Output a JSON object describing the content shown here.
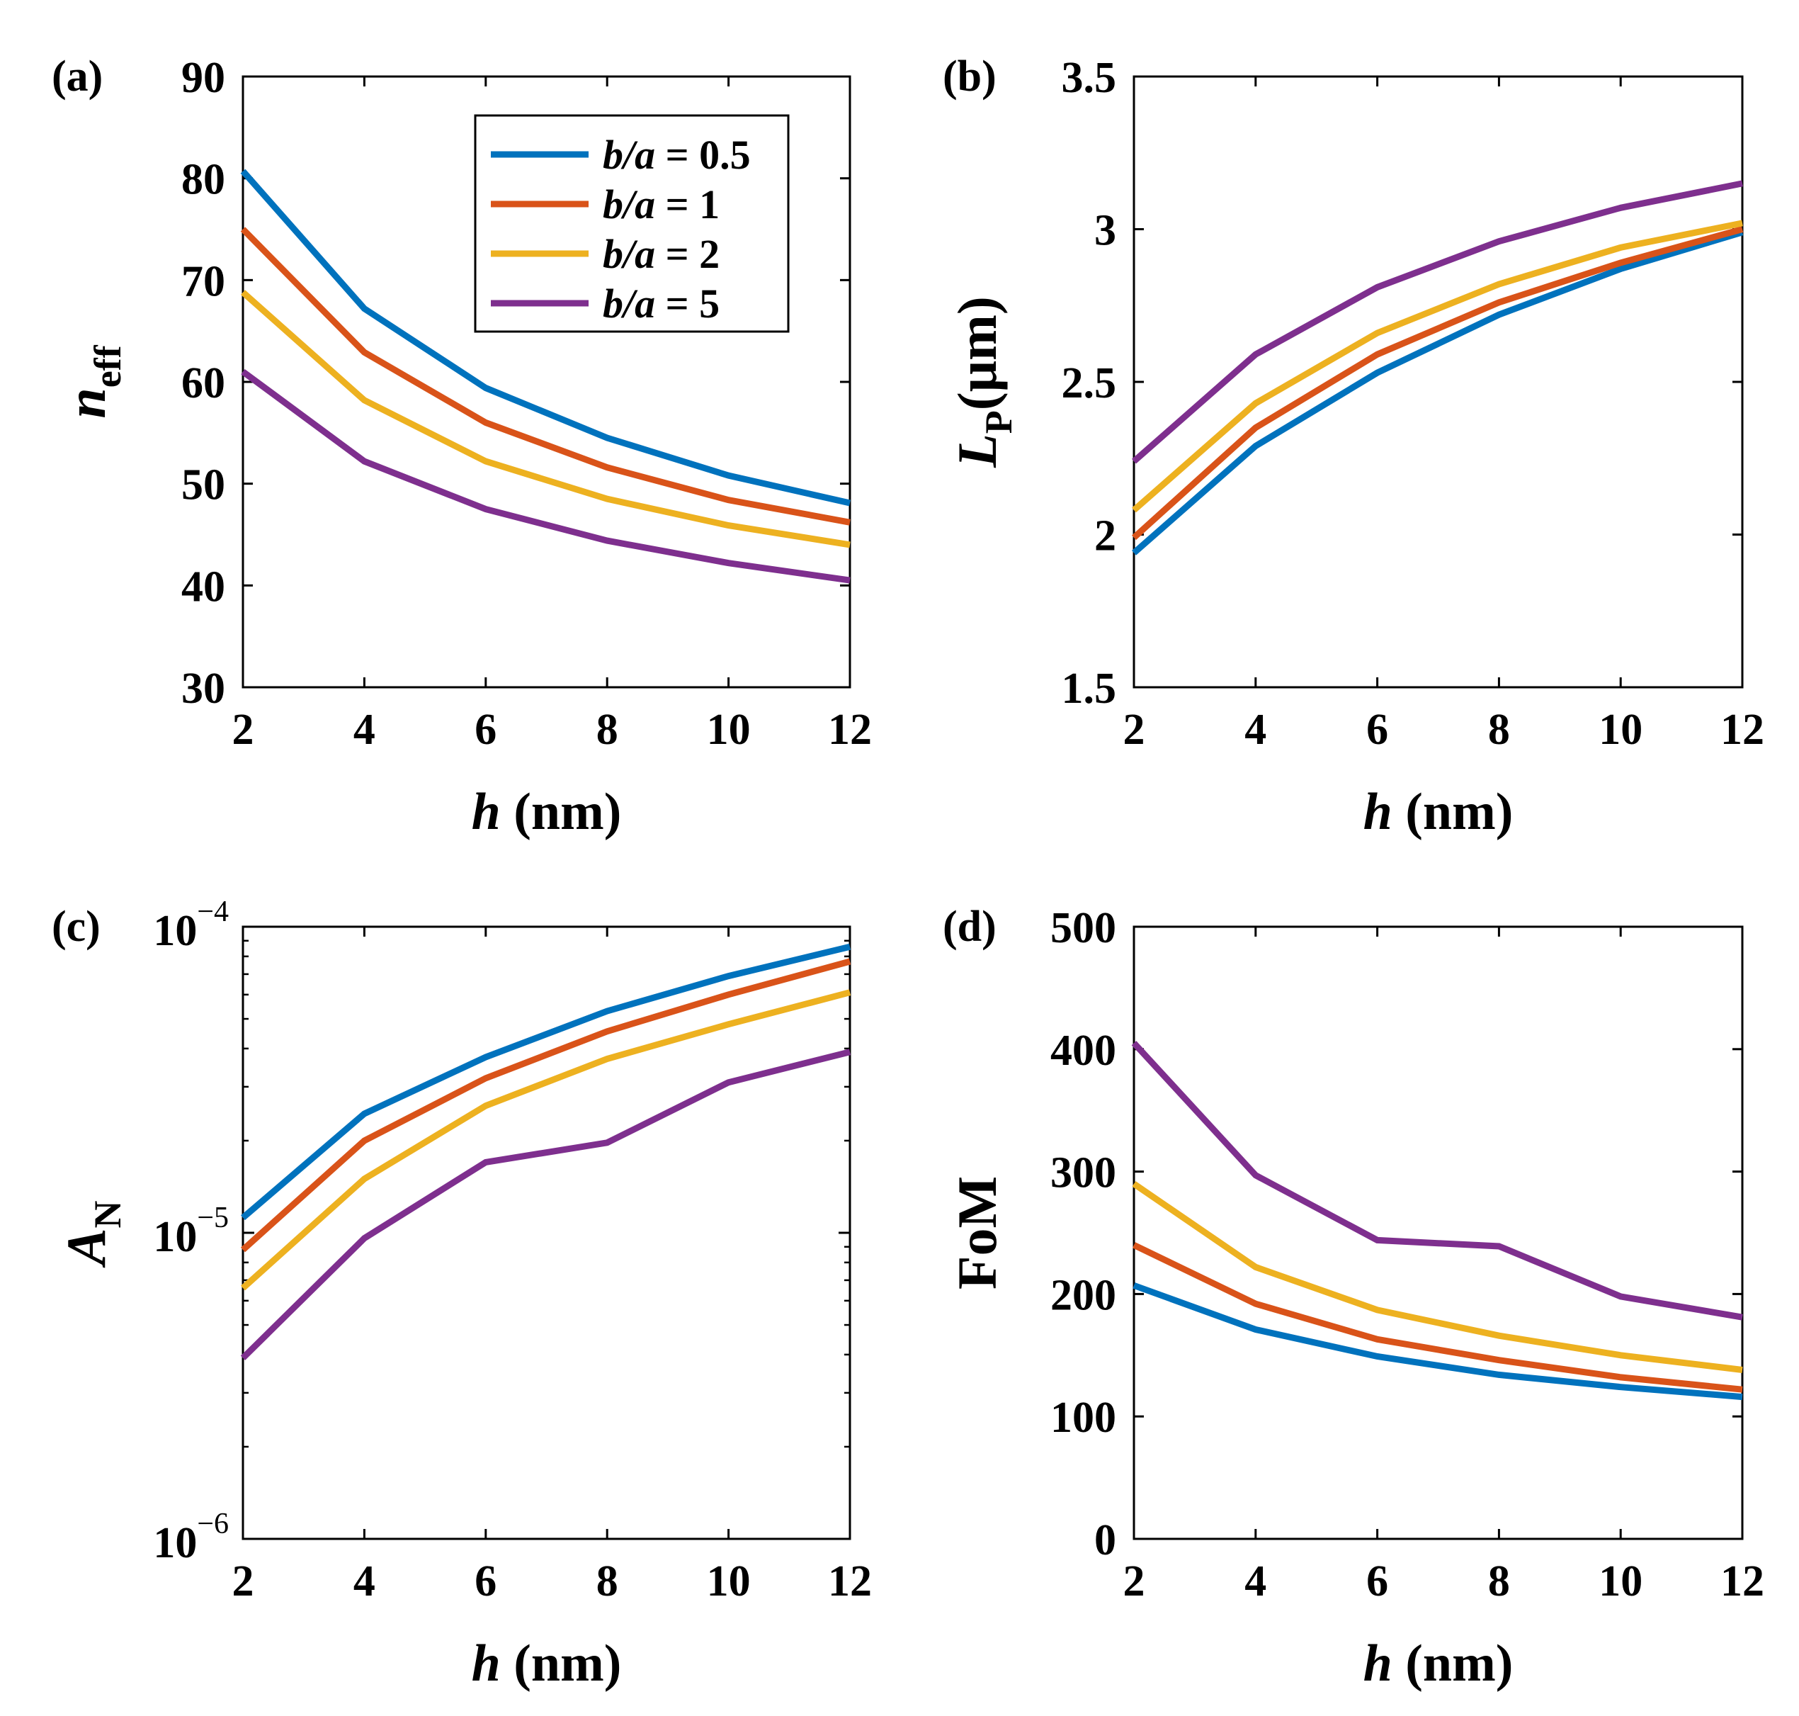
{
  "series_names": [
    "b/a = 0.5",
    "b/a = 1",
    "b/a = 2",
    "b/a = 5"
  ],
  "legend": [
    {
      "italic": "b/a",
      "rest": " = 0.5"
    },
    {
      "italic": "b/a",
      "rest": " = 1"
    },
    {
      "italic": "b/a",
      "rest": " = 2"
    },
    {
      "italic": "b/a",
      "rest": " = 5"
    }
  ],
  "colors": [
    "#0072BD",
    "#D95319",
    "#EDB120",
    "#7E2F8E"
  ],
  "chart_data": [
    {
      "panel": "(a)",
      "type": "line",
      "xlabel": {
        "italic": "h",
        "rest": " (nm)"
      },
      "ylabel": {
        "main": "n",
        "sub": "eff",
        "rest": "",
        "main_italic": true
      },
      "x": [
        2,
        4,
        6,
        8,
        10,
        12
      ],
      "xlim": [
        2,
        12
      ],
      "xticks": [
        "2",
        "4",
        "6",
        "8",
        "10",
        "12"
      ],
      "ylim": [
        30,
        90
      ],
      "yscale": "linear",
      "yticks": [
        "30",
        "40",
        "50",
        "60",
        "70",
        "80",
        "90"
      ],
      "legend_position": "top-right",
      "series": [
        {
          "name": "b/a = 0.5",
          "values": [
            80.7,
            67.2,
            59.4,
            54.5,
            50.8,
            48.1
          ]
        },
        {
          "name": "b/a = 1",
          "values": [
            75.0,
            62.9,
            56.0,
            51.6,
            48.4,
            46.2
          ]
        },
        {
          "name": "b/a = 2",
          "values": [
            68.8,
            58.2,
            52.2,
            48.5,
            45.9,
            44.0
          ]
        },
        {
          "name": "b/a = 5",
          "values": [
            61.0,
            52.2,
            47.5,
            44.4,
            42.2,
            40.5
          ]
        }
      ]
    },
    {
      "panel": "(b)",
      "type": "line",
      "xlabel": {
        "italic": "h",
        "rest": " (nm)"
      },
      "ylabel": {
        "main": "L",
        "sub": "P",
        "rest": "(μm)",
        "main_italic": true
      },
      "x": [
        2,
        4,
        6,
        8,
        10,
        12
      ],
      "xlim": [
        2,
        12
      ],
      "xticks": [
        "2",
        "4",
        "6",
        "8",
        "10",
        "12"
      ],
      "ylim": [
        1.5,
        3.5
      ],
      "yscale": "linear",
      "yticks": [
        "1.5",
        "2",
        "2.5",
        "3",
        "3.5"
      ],
      "series": [
        {
          "name": "b/a = 0.5",
          "values": [
            1.94,
            2.29,
            2.53,
            2.72,
            2.87,
            2.99
          ]
        },
        {
          "name": "b/a = 1",
          "values": [
            1.99,
            2.35,
            2.59,
            2.76,
            2.89,
            3.0
          ]
        },
        {
          "name": "b/a = 2",
          "values": [
            2.08,
            2.43,
            2.66,
            2.82,
            2.94,
            3.02
          ]
        },
        {
          "name": "b/a = 5",
          "values": [
            2.24,
            2.59,
            2.81,
            2.96,
            3.07,
            3.15
          ]
        }
      ]
    },
    {
      "panel": "(c)",
      "type": "line",
      "xlabel": {
        "italic": "h",
        "rest": " (nm)"
      },
      "ylabel": {
        "main": "A",
        "sub": "N",
        "rest": "",
        "main_italic": true
      },
      "x": [
        2,
        4,
        6,
        8,
        10,
        12
      ],
      "xlim": [
        2,
        12
      ],
      "xticks": [
        "2",
        "4",
        "6",
        "8",
        "10",
        "12"
      ],
      "ylim": [
        1e-06,
        0.0001
      ],
      "yscale": "log",
      "yticks": [
        {
          "base": "10",
          "exp": "−6"
        },
        {
          "base": "10",
          "exp": "−5"
        },
        {
          "base": "10",
          "exp": "−4"
        }
      ],
      "series": [
        {
          "name": "b/a = 0.5",
          "values": [
            1.12e-05,
            2.45e-05,
            3.75e-05,
            5.3e-05,
            6.9e-05,
            8.6e-05
          ]
        },
        {
          "name": "b/a = 1",
          "values": [
            8.8e-06,
            2e-05,
            3.2e-05,
            4.55e-05,
            6e-05,
            7.7e-05
          ]
        },
        {
          "name": "b/a = 2",
          "values": [
            6.6e-06,
            1.5e-05,
            2.6e-05,
            3.7e-05,
            4.8e-05,
            6.1e-05
          ]
        },
        {
          "name": "b/a = 5",
          "values": [
            3.9e-06,
            9.6e-06,
            1.7e-05,
            1.97e-05,
            3.1e-05,
            3.9e-05
          ]
        }
      ]
    },
    {
      "panel": "(d)",
      "type": "line",
      "xlabel": {
        "italic": "h",
        "rest": " (nm)"
      },
      "ylabel": {
        "main": "FoM",
        "sub": "",
        "rest": "",
        "main_italic": false
      },
      "x": [
        2,
        4,
        6,
        8,
        10,
        12
      ],
      "xlim": [
        2,
        12
      ],
      "xticks": [
        "2",
        "4",
        "6",
        "8",
        "10",
        "12"
      ],
      "ylim": [
        0,
        500
      ],
      "yscale": "linear",
      "yticks": [
        "0",
        "100",
        "200",
        "300",
        "400",
        "500"
      ],
      "series": [
        {
          "name": "b/a = 0.5",
          "values": [
            207,
            171,
            149,
            134,
            124,
            116
          ]
        },
        {
          "name": "b/a = 1",
          "values": [
            240,
            192,
            163,
            146,
            132,
            122
          ]
        },
        {
          "name": "b/a = 2",
          "values": [
            290,
            222,
            187,
            166,
            150,
            138
          ]
        },
        {
          "name": "b/a = 5",
          "values": [
            405,
            297,
            244,
            239,
            198,
            181
          ]
        }
      ]
    }
  ]
}
